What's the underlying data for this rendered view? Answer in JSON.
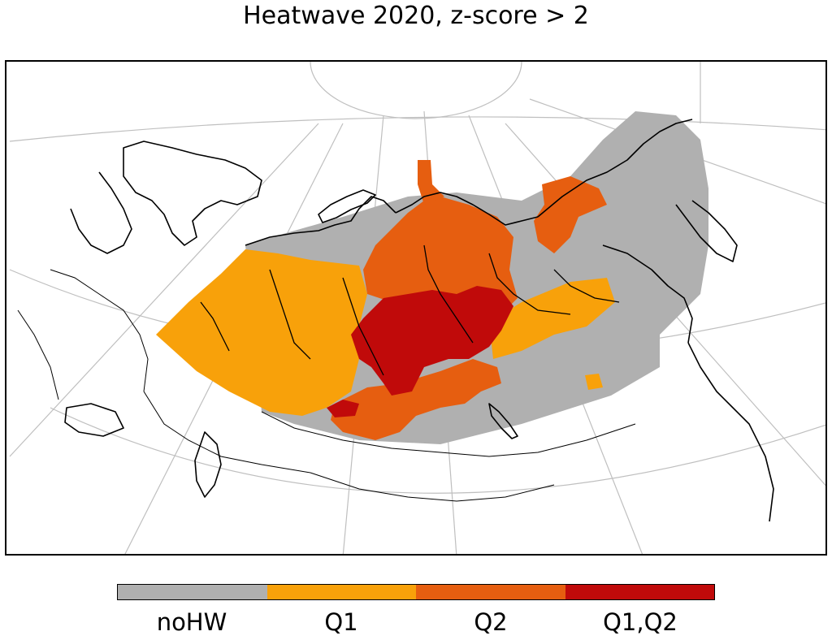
{
  "title": "Heatwave 2020, z-score > 2",
  "map": {
    "region": "Northern Eurasia / Siberia",
    "projection": "polar stereographic",
    "gridlines": true,
    "colors": {
      "noHW": "#b0b0b0",
      "Q1": "#f8a10a",
      "Q2": "#e65e10",
      "Q1Q2": "#c00a0a",
      "coast": "#000000",
      "grid": "#bfbfbf"
    }
  },
  "legend": {
    "categories": [
      {
        "label": "noHW",
        "color": "#b0b0b0"
      },
      {
        "label": "Q1",
        "color": "#f8a10a"
      },
      {
        "label": "Q2",
        "color": "#e65e10"
      },
      {
        "label": "Q1,Q2",
        "color": "#c00a0a"
      }
    ]
  }
}
